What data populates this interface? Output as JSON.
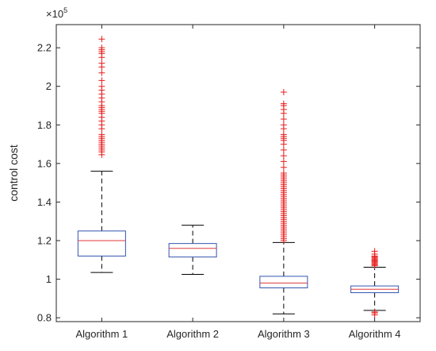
{
  "chart_data": {
    "type": "box",
    "title": "",
    "xlabel": "",
    "ylabel": "control cost",
    "y_multiplier": "×10",
    "y_multiplier_exp": "5",
    "ylim": [
      0.78,
      2.32
    ],
    "yticks": [
      0.8,
      1,
      1.2,
      1.4,
      1.6,
      1.8,
      2,
      2.2
    ],
    "ytick_labels": [
      "0.8",
      "1",
      "1.2",
      "1.4",
      "1.6",
      "1.8",
      "2",
      "2.2"
    ],
    "grid": false,
    "colors": {
      "box": "#3355b0",
      "median": "#e03a3a",
      "outlier": "#e81e1e",
      "whisker": "#000000",
      "axis": "#262626"
    },
    "categories": [
      "Algorithm 1",
      "Algorithm 2",
      "Algorithm 3",
      "Algorithm 4"
    ],
    "boxes": [
      {
        "name": "Algorithm 1",
        "whisker_low": 1.035,
        "q1": 1.12,
        "median": 1.2,
        "q3": 1.25,
        "whisker_high": 1.56,
        "outliers": [
          1.645,
          1.66,
          1.67,
          1.68,
          1.69,
          1.7,
          1.71,
          1.72,
          1.73,
          1.74,
          1.75,
          1.78,
          1.8,
          1.82,
          1.84,
          1.86,
          1.87,
          1.88,
          1.89,
          1.9,
          1.92,
          1.94,
          1.96,
          1.98,
          2.0,
          2.03,
          2.07,
          2.1,
          2.12,
          2.15,
          2.17,
          2.18,
          2.19,
          2.2,
          2.245
        ]
      },
      {
        "name": "Algorithm 2",
        "whisker_low": 1.025,
        "q1": 1.115,
        "median": 1.16,
        "q3": 1.185,
        "whisker_high": 1.28,
        "outliers": []
      },
      {
        "name": "Algorithm 3",
        "whisker_low": 0.82,
        "q1": 0.955,
        "median": 0.98,
        "q3": 1.015,
        "whisker_high": 1.19,
        "outliers": [
          1.2,
          1.21,
          1.22,
          1.23,
          1.24,
          1.25,
          1.26,
          1.27,
          1.28,
          1.29,
          1.3,
          1.31,
          1.32,
          1.33,
          1.34,
          1.35,
          1.36,
          1.37,
          1.38,
          1.39,
          1.4,
          1.41,
          1.42,
          1.43,
          1.44,
          1.45,
          1.46,
          1.47,
          1.48,
          1.49,
          1.5,
          1.51,
          1.52,
          1.53,
          1.54,
          1.55,
          1.58,
          1.61,
          1.64,
          1.67,
          1.7,
          1.72,
          1.73,
          1.74,
          1.75,
          1.78,
          1.8,
          1.83,
          1.86,
          1.88,
          1.9,
          1.91,
          1.97
        ]
      },
      {
        "name": "Algorithm 4",
        "whisker_low": 0.838,
        "q1": 0.93,
        "median": 0.948,
        "q3": 0.965,
        "whisker_high": 1.062,
        "outliers": [
          0.815,
          0.825,
          0.83,
          1.07,
          1.075,
          1.08,
          1.085,
          1.09,
          1.095,
          1.1,
          1.105,
          1.11,
          1.115,
          1.12,
          1.13,
          1.145
        ]
      }
    ]
  }
}
